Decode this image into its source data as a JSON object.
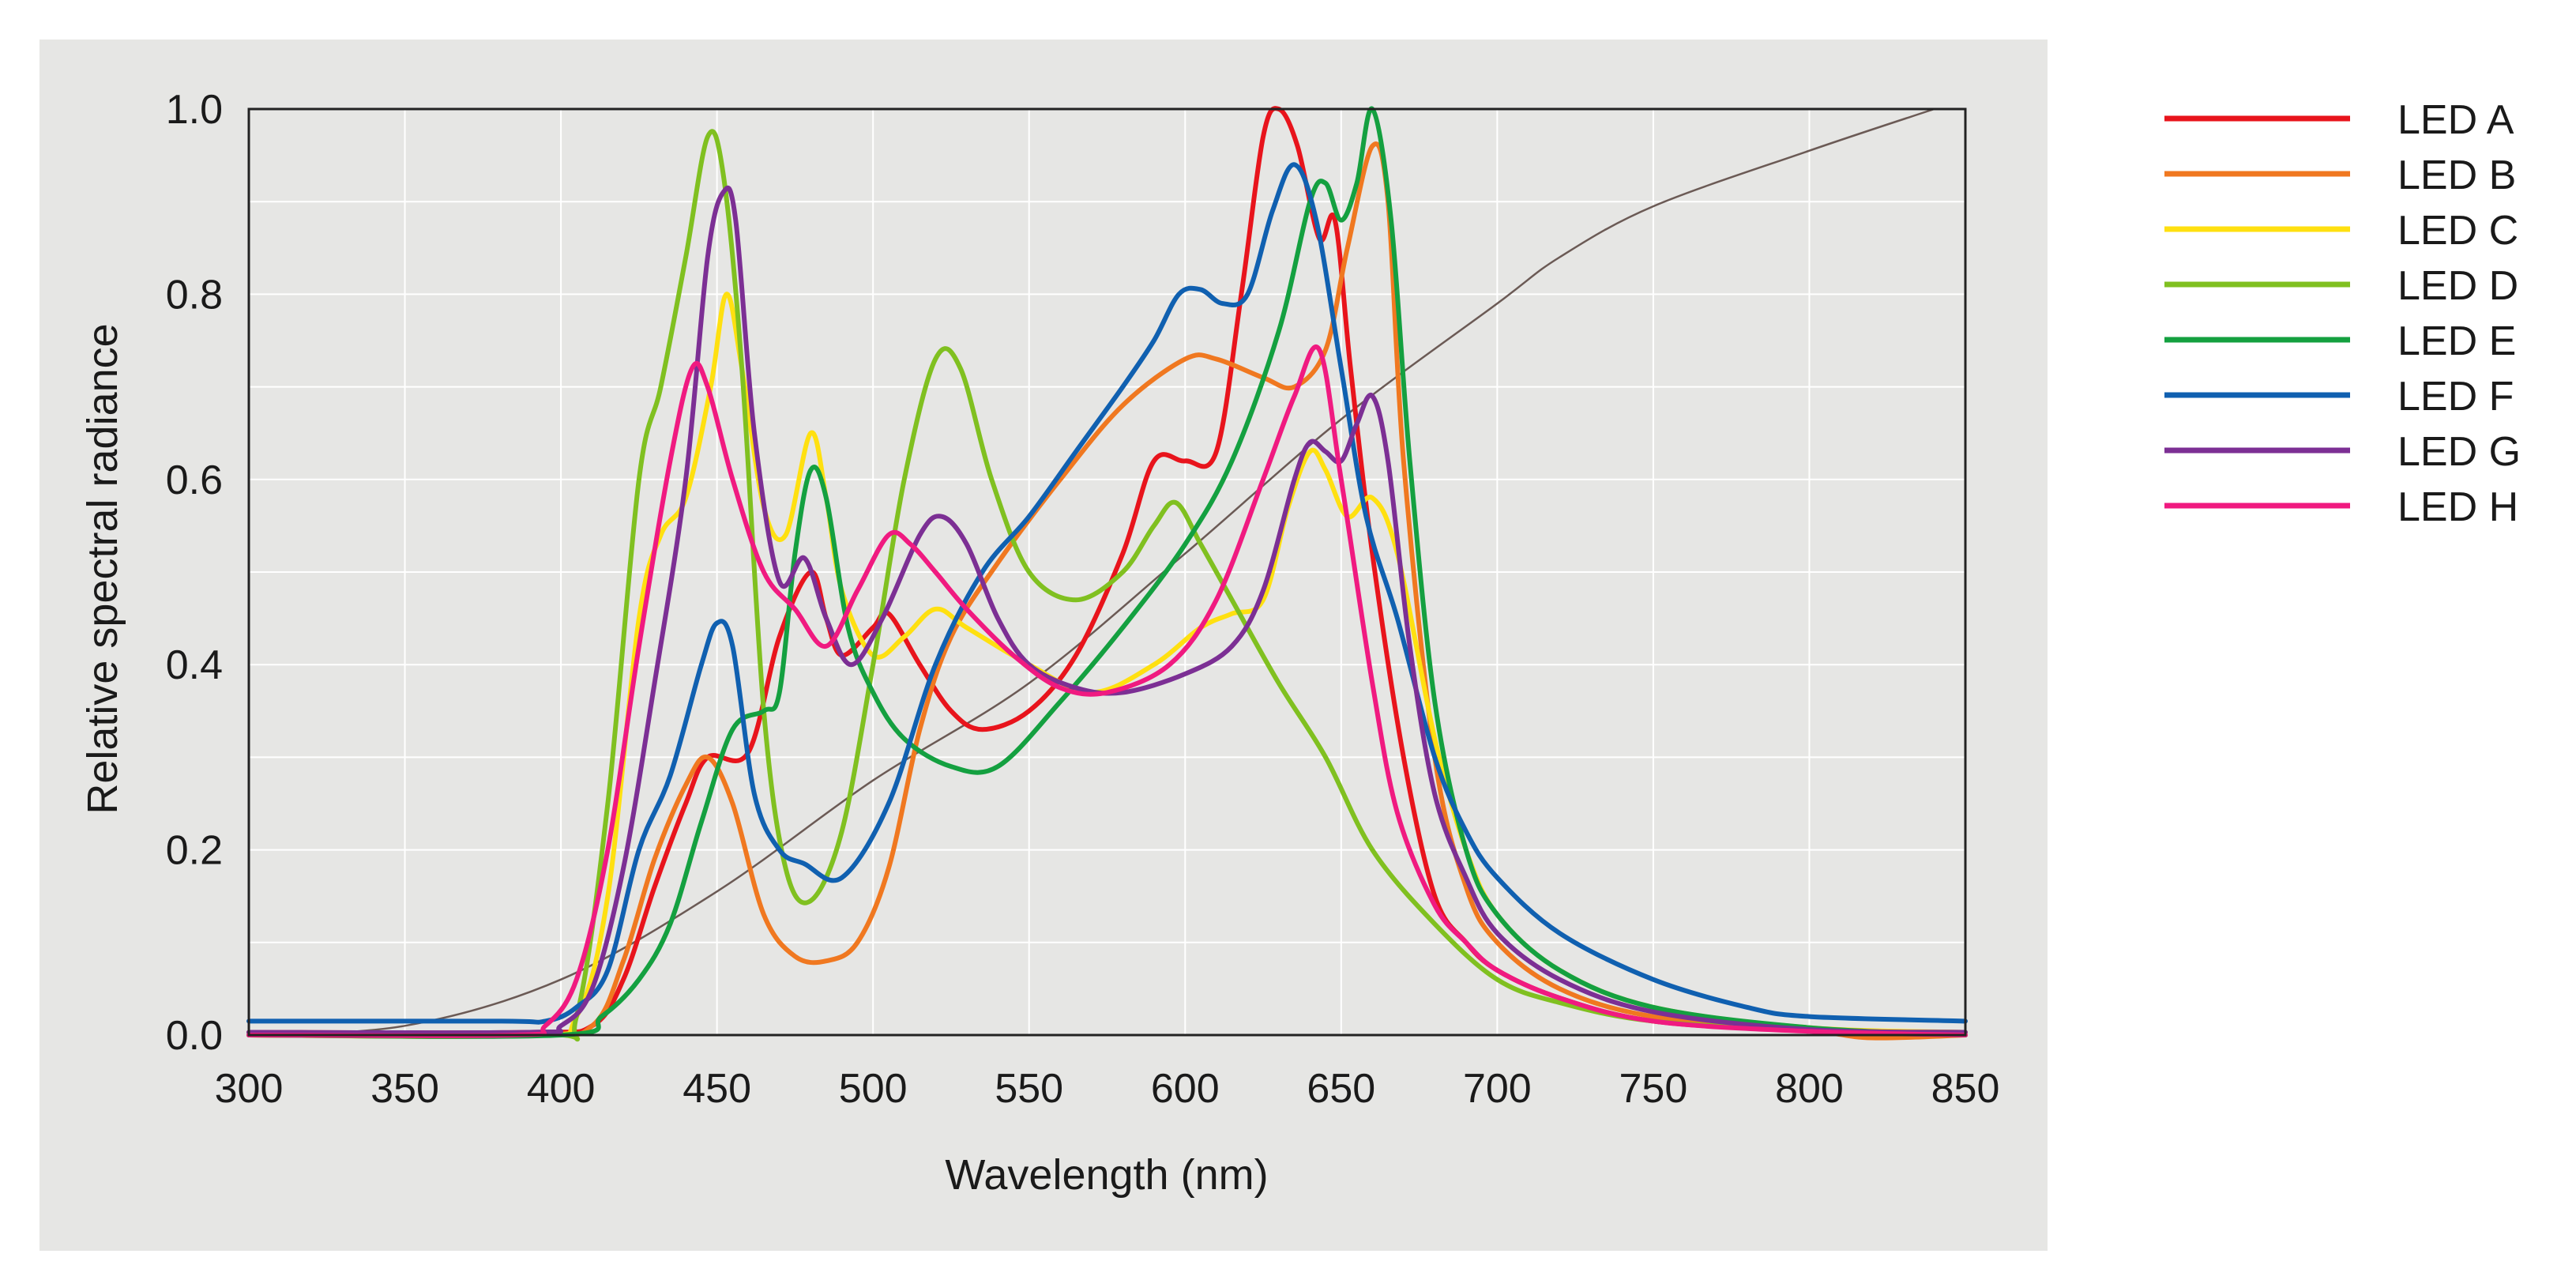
{
  "chart_data": {
    "type": "line",
    "title": "",
    "xlabel": "Wavelength (nm)",
    "ylabel": "Relative spectral radiance",
    "xlim": [
      300,
      850
    ],
    "ylim": [
      0,
      1.0
    ],
    "x_ticks": [
      300,
      350,
      400,
      450,
      500,
      550,
      600,
      650,
      700,
      750,
      800,
      850
    ],
    "y_ticks": [
      "0.0",
      "0.2",
      "0.4",
      "0.6",
      "0.8",
      "1.0"
    ],
    "grid": true,
    "legend_position": "right",
    "colors": {
      "plot_background": "#e6e6e4",
      "grid": "#ffffff",
      "axis": "#222222"
    },
    "reference_curve": {
      "name": "reference",
      "color": "#6b5a55",
      "points": [
        [
          300,
          0.0
        ],
        [
          350,
          0.01
        ],
        [
          400,
          0.06
        ],
        [
          450,
          0.155
        ],
        [
          500,
          0.275
        ],
        [
          550,
          0.38
        ],
        [
          600,
          0.52
        ],
        [
          650,
          0.665
        ],
        [
          700,
          0.79
        ],
        [
          720,
          0.84
        ],
        [
          750,
          0.895
        ],
        [
          800,
          0.955
        ],
        [
          840,
          1.0
        ]
      ]
    },
    "series": [
      {
        "name": "LED A",
        "color": "#e8141c",
        "points": [
          [
            300,
            0.003
          ],
          [
            390,
            0.003
          ],
          [
            410,
            0.01
          ],
          [
            420,
            0.06
          ],
          [
            430,
            0.16
          ],
          [
            440,
            0.25
          ],
          [
            447,
            0.3
          ],
          [
            460,
            0.305
          ],
          [
            470,
            0.43
          ],
          [
            480,
            0.5
          ],
          [
            485,
            0.45
          ],
          [
            490,
            0.41
          ],
          [
            500,
            0.44
          ],
          [
            505,
            0.455
          ],
          [
            515,
            0.4
          ],
          [
            525,
            0.35
          ],
          [
            535,
            0.33
          ],
          [
            550,
            0.35
          ],
          [
            565,
            0.41
          ],
          [
            580,
            0.52
          ],
          [
            590,
            0.62
          ],
          [
            600,
            0.62
          ],
          [
            610,
            0.63
          ],
          [
            618,
            0.8
          ],
          [
            625,
            0.97
          ],
          [
            630,
            1.0
          ],
          [
            636,
            0.96
          ],
          [
            643,
            0.86
          ],
          [
            648,
            0.88
          ],
          [
            653,
            0.72
          ],
          [
            660,
            0.52
          ],
          [
            670,
            0.3
          ],
          [
            680,
            0.15
          ],
          [
            690,
            0.1
          ],
          [
            700,
            0.07
          ],
          [
            720,
            0.04
          ],
          [
            750,
            0.015
          ],
          [
            800,
            0.005
          ],
          [
            850,
            0.003
          ]
        ]
      },
      {
        "name": "LED B",
        "color": "#f07820",
        "points": [
          [
            300,
            0.0
          ],
          [
            390,
            0.0
          ],
          [
            410,
            0.01
          ],
          [
            420,
            0.08
          ],
          [
            430,
            0.19
          ],
          [
            440,
            0.27
          ],
          [
            447,
            0.3
          ],
          [
            455,
            0.25
          ],
          [
            465,
            0.13
          ],
          [
            475,
            0.085
          ],
          [
            485,
            0.08
          ],
          [
            495,
            0.1
          ],
          [
            505,
            0.18
          ],
          [
            515,
            0.33
          ],
          [
            525,
            0.43
          ],
          [
            540,
            0.51
          ],
          [
            560,
            0.6
          ],
          [
            580,
            0.68
          ],
          [
            600,
            0.73
          ],
          [
            610,
            0.73
          ],
          [
            625,
            0.71
          ],
          [
            635,
            0.7
          ],
          [
            645,
            0.74
          ],
          [
            652,
            0.85
          ],
          [
            660,
            0.96
          ],
          [
            665,
            0.9
          ],
          [
            670,
            0.62
          ],
          [
            680,
            0.3
          ],
          [
            690,
            0.16
          ],
          [
            700,
            0.1
          ],
          [
            720,
            0.05
          ],
          [
            750,
            0.02
          ],
          [
            800,
            0.005
          ],
          [
            820,
            -0.003
          ],
          [
            850,
            0.0
          ]
        ]
      },
      {
        "name": "LED C",
        "color": "#ffe010",
        "points": [
          [
            300,
            0.0
          ],
          [
            390,
            0.0
          ],
          [
            405,
            0.02
          ],
          [
            415,
            0.15
          ],
          [
            425,
            0.45
          ],
          [
            432,
            0.54
          ],
          [
            440,
            0.58
          ],
          [
            448,
            0.7
          ],
          [
            453,
            0.8
          ],
          [
            458,
            0.72
          ],
          [
            465,
            0.57
          ],
          [
            472,
            0.54
          ],
          [
            480,
            0.65
          ],
          [
            485,
            0.58
          ],
          [
            490,
            0.48
          ],
          [
            500,
            0.41
          ],
          [
            510,
            0.43
          ],
          [
            520,
            0.46
          ],
          [
            530,
            0.44
          ],
          [
            550,
            0.4
          ],
          [
            570,
            0.37
          ],
          [
            590,
            0.4
          ],
          [
            605,
            0.44
          ],
          [
            615,
            0.455
          ],
          [
            625,
            0.47
          ],
          [
            633,
            0.57
          ],
          [
            640,
            0.63
          ],
          [
            645,
            0.61
          ],
          [
            652,
            0.56
          ],
          [
            660,
            0.58
          ],
          [
            668,
            0.52
          ],
          [
            680,
            0.32
          ],
          [
            690,
            0.2
          ],
          [
            700,
            0.13
          ],
          [
            720,
            0.07
          ],
          [
            750,
            0.03
          ],
          [
            800,
            0.008
          ],
          [
            850,
            0.003
          ]
        ]
      },
      {
        "name": "LED D",
        "color": "#80c020",
        "points": [
          [
            300,
            0.0
          ],
          [
            395,
            0.0
          ],
          [
            405,
            0.02
          ],
          [
            415,
            0.25
          ],
          [
            425,
            0.6
          ],
          [
            432,
            0.7
          ],
          [
            440,
            0.84
          ],
          [
            447,
            0.97
          ],
          [
            452,
            0.93
          ],
          [
            458,
            0.72
          ],
          [
            465,
            0.35
          ],
          [
            472,
            0.18
          ],
          [
            480,
            0.145
          ],
          [
            490,
            0.22
          ],
          [
            500,
            0.4
          ],
          [
            510,
            0.6
          ],
          [
            520,
            0.73
          ],
          [
            528,
            0.72
          ],
          [
            538,
            0.6
          ],
          [
            550,
            0.5
          ],
          [
            565,
            0.47
          ],
          [
            580,
            0.5
          ],
          [
            590,
            0.55
          ],
          [
            597,
            0.575
          ],
          [
            605,
            0.53
          ],
          [
            615,
            0.47
          ],
          [
            630,
            0.38
          ],
          [
            645,
            0.3
          ],
          [
            660,
            0.2
          ],
          [
            680,
            0.12
          ],
          [
            700,
            0.06
          ],
          [
            720,
            0.035
          ],
          [
            750,
            0.015
          ],
          [
            800,
            0.005
          ],
          [
            850,
            0.0
          ]
        ]
      },
      {
        "name": "LED E",
        "color": "#14a040",
        "points": [
          [
            300,
            0.0
          ],
          [
            400,
            0.0
          ],
          [
            413,
            0.02
          ],
          [
            425,
            0.06
          ],
          [
            435,
            0.12
          ],
          [
            445,
            0.23
          ],
          [
            455,
            0.33
          ],
          [
            465,
            0.35
          ],
          [
            470,
            0.37
          ],
          [
            475,
            0.52
          ],
          [
            480,
            0.61
          ],
          [
            485,
            0.58
          ],
          [
            492,
            0.44
          ],
          [
            500,
            0.37
          ],
          [
            510,
            0.32
          ],
          [
            525,
            0.29
          ],
          [
            540,
            0.29
          ],
          [
            560,
            0.36
          ],
          [
            580,
            0.44
          ],
          [
            600,
            0.53
          ],
          [
            615,
            0.62
          ],
          [
            630,
            0.76
          ],
          [
            640,
            0.9
          ],
          [
            645,
            0.92
          ],
          [
            650,
            0.88
          ],
          [
            655,
            0.92
          ],
          [
            660,
            1.0
          ],
          [
            666,
            0.88
          ],
          [
            672,
            0.62
          ],
          [
            680,
            0.36
          ],
          [
            690,
            0.2
          ],
          [
            700,
            0.13
          ],
          [
            720,
            0.07
          ],
          [
            750,
            0.03
          ],
          [
            800,
            0.008
          ],
          [
            850,
            0.0
          ]
        ]
      },
      {
        "name": "LED F",
        "color": "#1060b0",
        "points": [
          [
            300,
            0.015
          ],
          [
            380,
            0.015
          ],
          [
            395,
            0.015
          ],
          [
            405,
            0.03
          ],
          [
            415,
            0.07
          ],
          [
            425,
            0.2
          ],
          [
            435,
            0.28
          ],
          [
            445,
            0.4
          ],
          [
            450,
            0.445
          ],
          [
            455,
            0.42
          ],
          [
            462,
            0.26
          ],
          [
            470,
            0.2
          ],
          [
            478,
            0.185
          ],
          [
            490,
            0.17
          ],
          [
            505,
            0.25
          ],
          [
            520,
            0.4
          ],
          [
            535,
            0.5
          ],
          [
            550,
            0.56
          ],
          [
            565,
            0.63
          ],
          [
            580,
            0.7
          ],
          [
            590,
            0.75
          ],
          [
            598,
            0.8
          ],
          [
            605,
            0.805
          ],
          [
            612,
            0.79
          ],
          [
            620,
            0.8
          ],
          [
            628,
            0.89
          ],
          [
            635,
            0.94
          ],
          [
            642,
            0.88
          ],
          [
            650,
            0.72
          ],
          [
            658,
            0.56
          ],
          [
            668,
            0.45
          ],
          [
            680,
            0.3
          ],
          [
            690,
            0.22
          ],
          [
            700,
            0.17
          ],
          [
            720,
            0.11
          ],
          [
            750,
            0.06
          ],
          [
            780,
            0.03
          ],
          [
            800,
            0.02
          ],
          [
            850,
            0.015
          ]
        ]
      },
      {
        "name": "LED G",
        "color": "#7c2f94",
        "points": [
          [
            300,
            0.003
          ],
          [
            390,
            0.003
          ],
          [
            400,
            0.01
          ],
          [
            410,
            0.05
          ],
          [
            420,
            0.18
          ],
          [
            430,
            0.38
          ],
          [
            440,
            0.6
          ],
          [
            447,
            0.84
          ],
          [
            452,
            0.91
          ],
          [
            456,
            0.88
          ],
          [
            462,
            0.65
          ],
          [
            470,
            0.49
          ],
          [
            478,
            0.515
          ],
          [
            485,
            0.45
          ],
          [
            493,
            0.4
          ],
          [
            503,
            0.45
          ],
          [
            515,
            0.54
          ],
          [
            522,
            0.56
          ],
          [
            530,
            0.53
          ],
          [
            540,
            0.45
          ],
          [
            550,
            0.4
          ],
          [
            565,
            0.375
          ],
          [
            580,
            0.37
          ],
          [
            600,
            0.39
          ],
          [
            615,
            0.42
          ],
          [
            625,
            0.48
          ],
          [
            635,
            0.6
          ],
          [
            640,
            0.64
          ],
          [
            645,
            0.63
          ],
          [
            650,
            0.62
          ],
          [
            655,
            0.66
          ],
          [
            660,
            0.69
          ],
          [
            665,
            0.62
          ],
          [
            672,
            0.42
          ],
          [
            680,
            0.26
          ],
          [
            690,
            0.17
          ],
          [
            700,
            0.11
          ],
          [
            720,
            0.06
          ],
          [
            750,
            0.025
          ],
          [
            800,
            0.006
          ],
          [
            850,
            0.003
          ]
        ]
      },
      {
        "name": "LED H",
        "color": "#f01a80",
        "points": [
          [
            300,
            0.0
          ],
          [
            385,
            0.0
          ],
          [
            395,
            0.01
          ],
          [
            405,
            0.06
          ],
          [
            415,
            0.2
          ],
          [
            425,
            0.42
          ],
          [
            435,
            0.62
          ],
          [
            442,
            0.72
          ],
          [
            447,
            0.7
          ],
          [
            455,
            0.6
          ],
          [
            465,
            0.5
          ],
          [
            475,
            0.46
          ],
          [
            485,
            0.42
          ],
          [
            495,
            0.48
          ],
          [
            505,
            0.54
          ],
          [
            512,
            0.53
          ],
          [
            520,
            0.5
          ],
          [
            530,
            0.46
          ],
          [
            545,
            0.41
          ],
          [
            560,
            0.375
          ],
          [
            575,
            0.37
          ],
          [
            595,
            0.4
          ],
          [
            610,
            0.47
          ],
          [
            625,
            0.6
          ],
          [
            635,
            0.69
          ],
          [
            643,
            0.74
          ],
          [
            650,
            0.6
          ],
          [
            660,
            0.38
          ],
          [
            668,
            0.24
          ],
          [
            680,
            0.14
          ],
          [
            690,
            0.1
          ],
          [
            700,
            0.07
          ],
          [
            720,
            0.04
          ],
          [
            750,
            0.015
          ],
          [
            800,
            0.004
          ],
          [
            850,
            0.0
          ]
        ]
      }
    ]
  }
}
